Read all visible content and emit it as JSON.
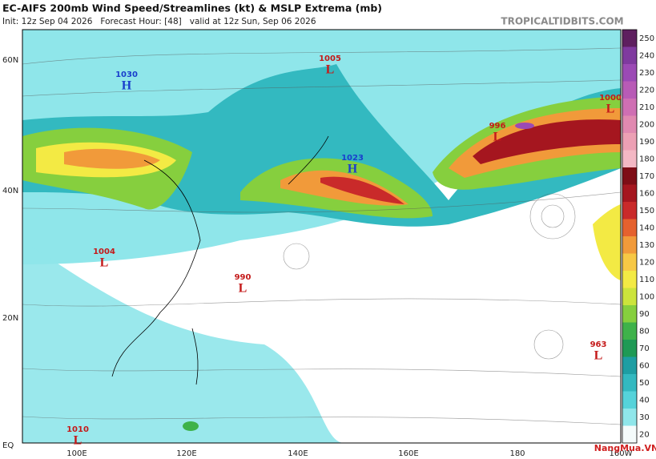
{
  "header": {
    "title": "EC-AIFS 200mb Wind Speed/Streamlines (kt) & MSLP Extrema (mb)",
    "subtitle": "Init: 12z Sep 04 2026   Forecast Hour: [48]   valid at 12z Sun, Sep 06 2026",
    "source": "TROPICALTIDBITS.COM"
  },
  "map": {
    "lat_labels": [
      "60N",
      "40N",
      "20N",
      "EQ"
    ],
    "lon_labels": [
      "100E",
      "120E",
      "140E",
      "160E",
      "180",
      "160W"
    ],
    "systems": [
      {
        "letter": "H",
        "value": 1030
      },
      {
        "letter": "L",
        "value": 1005
      },
      {
        "letter": "H",
        "value": 1023
      },
      {
        "letter": "L",
        "value": 996
      },
      {
        "letter": "L",
        "value": 1000
      },
      {
        "letter": "L",
        "value": 1004
      },
      {
        "letter": "L",
        "value": 990
      },
      {
        "letter": "L",
        "value": 963
      },
      {
        "letter": "L",
        "value": 1010
      }
    ]
  },
  "colorbar": {
    "ticks": [
      20,
      30,
      40,
      50,
      60,
      70,
      80,
      90,
      100,
      110,
      120,
      130,
      140,
      150,
      160,
      170,
      180,
      190,
      200,
      210,
      220,
      230,
      240,
      250
    ],
    "colors": [
      "#f4fbfb",
      "#8fe6ea",
      "#55d3da",
      "#33b9c0",
      "#1e9ea3",
      "#1f9a55",
      "#3eb24a",
      "#86cf3e",
      "#cce43c",
      "#f3ea44",
      "#f7c845",
      "#f19a3a",
      "#e5612e",
      "#c92a2a",
      "#a5161f",
      "#7e0d16",
      "#f3b8c4",
      "#eca0b4",
      "#e089b0",
      "#cf6fb3",
      "#b85bb6",
      "#9b4ab5",
      "#7f3a9f",
      "#5e1f5f"
    ]
  },
  "watermark": "NangMua.VN"
}
